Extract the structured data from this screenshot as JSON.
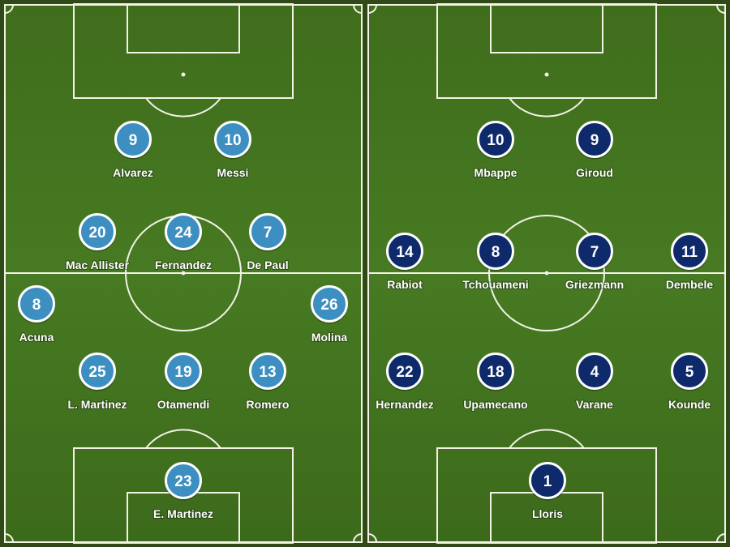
{
  "teams": [
    {
      "color": "#3d8fc2",
      "players": [
        {
          "number": "9",
          "name": "Alvarez"
        },
        {
          "number": "10",
          "name": "Messi"
        },
        {
          "number": "20",
          "name": "Mac Allister"
        },
        {
          "number": "24",
          "name": "Fernandez"
        },
        {
          "number": "7",
          "name": "De Paul"
        },
        {
          "number": "8",
          "name": "Acuna"
        },
        {
          "number": "26",
          "name": "Molina"
        },
        {
          "number": "25",
          "name": "L. Martinez"
        },
        {
          "number": "19",
          "name": "Otamendi"
        },
        {
          "number": "13",
          "name": "Romero"
        },
        {
          "number": "23",
          "name": "E. Martinez"
        }
      ]
    },
    {
      "color": "#0f2a6b",
      "players": [
        {
          "number": "10",
          "name": "Mbappe"
        },
        {
          "number": "9",
          "name": "Giroud"
        },
        {
          "number": "14",
          "name": "Rabiot"
        },
        {
          "number": "8",
          "name": "Tchouameni"
        },
        {
          "number": "7",
          "name": "Griezmann"
        },
        {
          "number": "11",
          "name": "Dembele"
        },
        {
          "number": "22",
          "name": "Hernandez"
        },
        {
          "number": "18",
          "name": "Upamecano"
        },
        {
          "number": "4",
          "name": "Varane"
        },
        {
          "number": "5",
          "name": "Kounde"
        },
        {
          "number": "1",
          "name": "Lloris"
        }
      ]
    }
  ]
}
